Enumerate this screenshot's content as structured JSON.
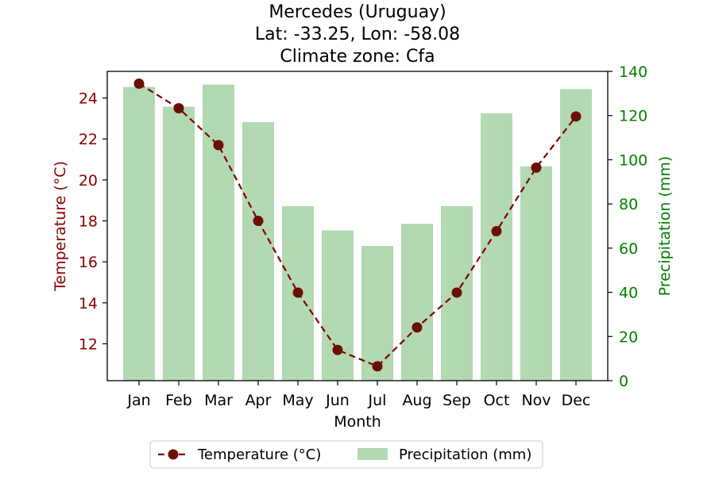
{
  "chart_data": {
    "type": "bar+line",
    "title_lines": [
      "Mercedes (Uruguay)",
      "Lat: -33.25, Lon: -58.08",
      "Climate zone: Cfa"
    ],
    "xlabel": "Month",
    "ylabel_left": "Temperature (°C)",
    "ylabel_right": "Precipitation (mm)",
    "categories": [
      "Jan",
      "Feb",
      "Mar",
      "Apr",
      "May",
      "Jun",
      "Jul",
      "Aug",
      "Sep",
      "Oct",
      "Nov",
      "Dec"
    ],
    "left_axis": {
      "range": [
        10.2,
        25.3
      ],
      "ticks": [
        12,
        14,
        16,
        18,
        20,
        22,
        24
      ]
    },
    "right_axis": {
      "range": [
        0,
        140
      ],
      "ticks": [
        0,
        20,
        40,
        60,
        80,
        100,
        120,
        140
      ]
    },
    "series": [
      {
        "name": "Temperature (°C)",
        "type": "line",
        "axis": "left",
        "color": "#800000",
        "marker_color": "#6b0f00",
        "values": [
          24.7,
          23.5,
          21.7,
          18.0,
          14.5,
          11.7,
          10.9,
          12.8,
          14.5,
          17.5,
          20.6,
          23.1
        ]
      },
      {
        "name": "Precipitation (mm)",
        "type": "bar",
        "axis": "right",
        "color": "#b2d9b2",
        "values": [
          133,
          124,
          134,
          117,
          79,
          68,
          61,
          71,
          79,
          121,
          97,
          132
        ]
      }
    ],
    "legend_position": "bottom-center",
    "colors": {
      "left_axis": "#8b0000",
      "right_axis": "#008000"
    },
    "grid": false
  }
}
